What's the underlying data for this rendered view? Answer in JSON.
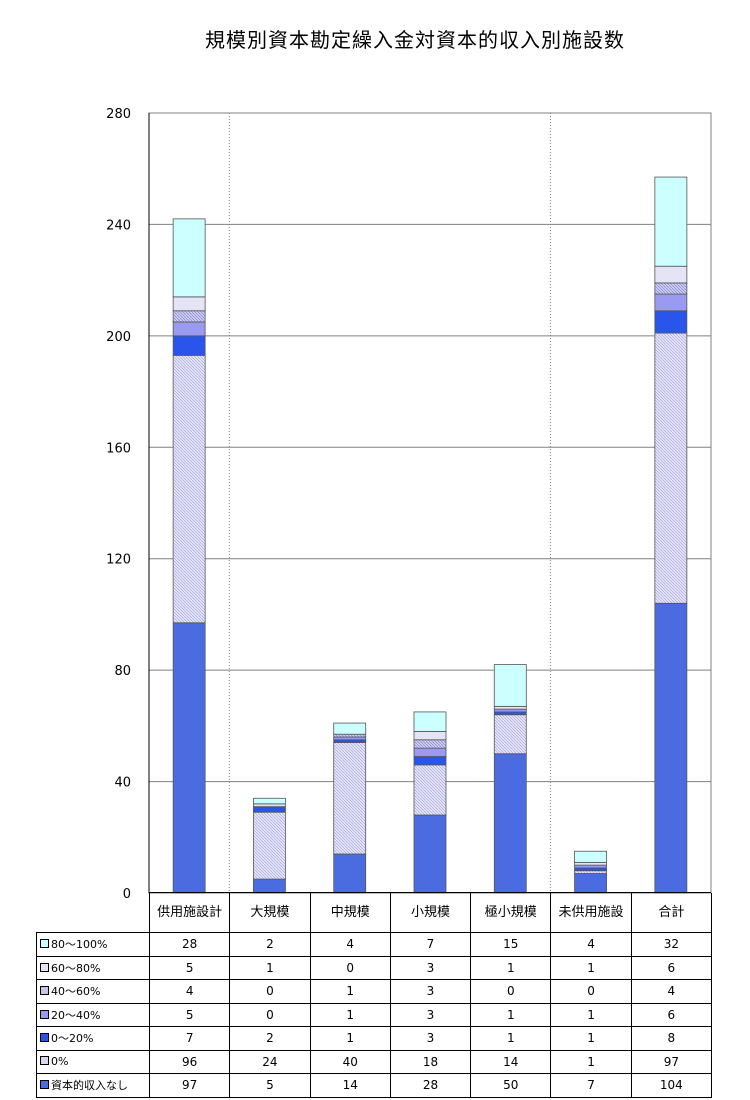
{
  "chart_data": {
    "type": "bar",
    "stacked": true,
    "title": "規模別資本勘定繰入金対資本的収入別施設数",
    "categories": [
      "供用施設計",
      "大規模",
      "中規模",
      "小規模",
      "極小規模",
      "未供用施設",
      "合計"
    ],
    "yticks": [
      "0",
      "40",
      "80",
      "120",
      "160",
      "200",
      "240",
      "280"
    ],
    "ylim": [
      0,
      280
    ],
    "series": [
      {
        "name": "資本的収入なし",
        "values": [
          97,
          5,
          14,
          28,
          50,
          7,
          104
        ],
        "color": "#4a6ce0",
        "pattern": "solid"
      },
      {
        "name": "0%",
        "values": [
          96,
          24,
          40,
          18,
          14,
          1,
          97
        ],
        "color": "#d6d6f2",
        "pattern": "hatch"
      },
      {
        "name": "0～20%",
        "values": [
          7,
          2,
          1,
          3,
          1,
          1,
          8
        ],
        "color": "#2a55ec",
        "pattern": "solid"
      },
      {
        "name": "20～40%",
        "values": [
          5,
          0,
          1,
          3,
          1,
          1,
          6
        ],
        "color": "#9a9af0",
        "pattern": "solid"
      },
      {
        "name": "40～60%",
        "values": [
          4,
          0,
          1,
          3,
          0,
          0,
          4
        ],
        "color": "#c4c4ec",
        "pattern": "hatch"
      },
      {
        "name": "60～80%",
        "values": [
          5,
          1,
          0,
          3,
          1,
          1,
          6
        ],
        "color": "#e4e4f6",
        "pattern": "solid"
      },
      {
        "name": "80～100%",
        "values": [
          28,
          2,
          4,
          7,
          15,
          4,
          32
        ],
        "color": "#ccffff",
        "pattern": "solid"
      }
    ],
    "grid": true,
    "legend": "data table below chart"
  }
}
